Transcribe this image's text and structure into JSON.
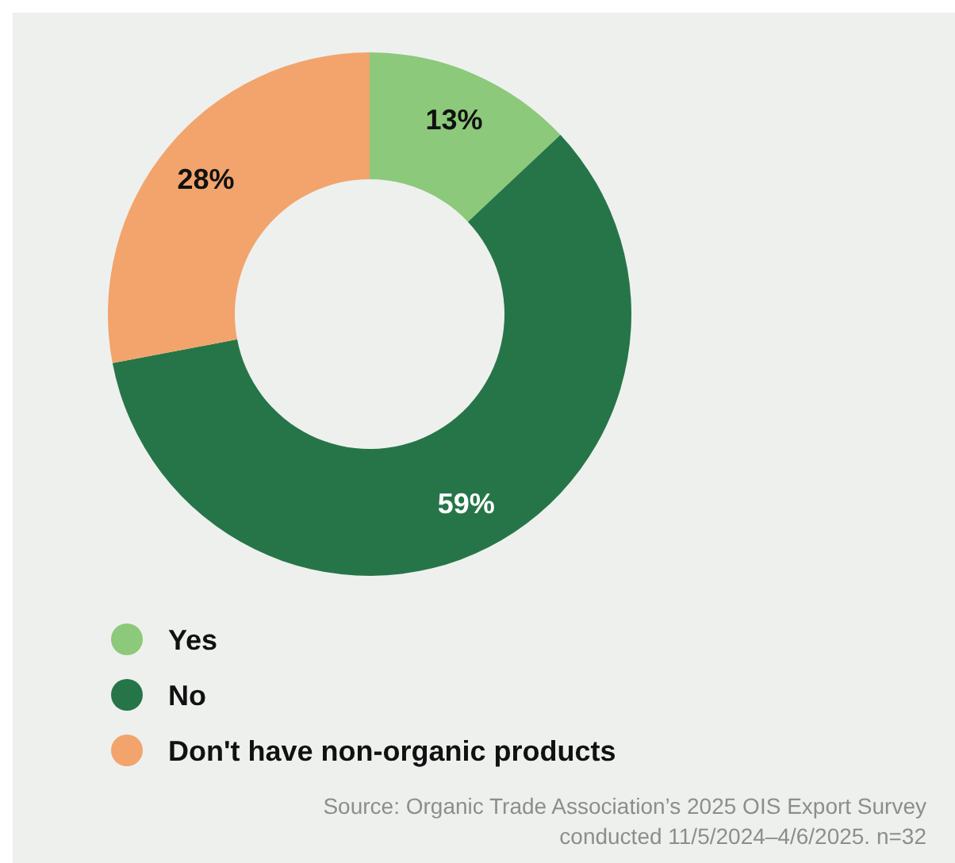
{
  "chart_data": {
    "type": "donut",
    "categories": [
      "Yes",
      "No",
      "Don't have non-organic products"
    ],
    "values": [
      13,
      59,
      28
    ],
    "colors": [
      "#8cc97a",
      "#267548",
      "#f2a46c"
    ],
    "value_labels": [
      "13%",
      "59%",
      "28%"
    ],
    "legend": "bottom left",
    "annotations": [
      "Source: Organic Trade Association’s 2025 OIS Export Survey",
      "conducted 11/5/2024–4/6/2025. n=32"
    ]
  }
}
